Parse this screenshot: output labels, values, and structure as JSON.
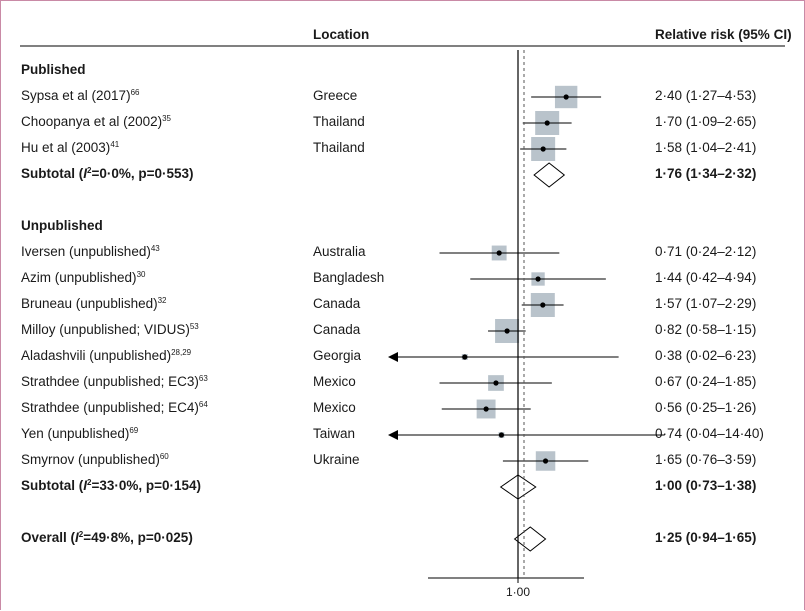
{
  "header": {
    "location": "Location",
    "effect": "Relative risk (95% CI)"
  },
  "sections": [
    {
      "label": "Published",
      "studies": [
        {
          "name": "Sypsa et al (2017)",
          "ref": "66",
          "location": "Greece",
          "rr": 2.4,
          "lo": 1.27,
          "hi": 4.53,
          "label": "2·40 (1·27–4·53)"
        },
        {
          "name": "Choopanya et al (2002)",
          "ref": "35",
          "location": "Thailand",
          "rr": 1.7,
          "lo": 1.09,
          "hi": 2.65,
          "label": "1·70 (1·09–2·65)"
        },
        {
          "name": "Hu et al (2003)",
          "ref": "41",
          "location": "Thailand",
          "rr": 1.58,
          "lo": 1.04,
          "hi": 2.41,
          "label": "1·58 (1·04–2·41)"
        }
      ],
      "subtotal": {
        "pre": "Subtotal (",
        "i": "I",
        "sq": "2",
        "post": "=0·0%, p=0·553)",
        "rr": 1.76,
        "lo": 1.34,
        "hi": 2.32,
        "label": "1·76 (1·34–2·32)"
      }
    },
    {
      "label": "Unpublished",
      "studies": [
        {
          "name": "Iversen (unpublished)",
          "ref": "43",
          "location": "Australia",
          "rr": 0.71,
          "lo": 0.24,
          "hi": 2.12,
          "label": "0·71 (0·24–2·12)"
        },
        {
          "name": "Azim (unpublished)",
          "ref": "30",
          "location": "Bangladesh",
          "rr": 1.44,
          "lo": 0.42,
          "hi": 4.94,
          "label": "1·44 (0·42–4·94)"
        },
        {
          "name": "Bruneau (unpublished)",
          "ref": "32",
          "location": "Canada",
          "rr": 1.57,
          "lo": 1.07,
          "hi": 2.29,
          "label": "1·57 (1·07–2·29)"
        },
        {
          "name": "Milloy (unpublished; VIDUS)",
          "ref": "53",
          "location": "Canada",
          "rr": 0.82,
          "lo": 0.58,
          "hi": 1.15,
          "label": "0·82 (0·58–1·15)"
        },
        {
          "name": "Aladashvili (unpublished)",
          "ref": "28,29",
          "location": "Georgia",
          "rr": 0.38,
          "lo": 0.02,
          "hi": 6.23,
          "label": "0·38 (0·02–6·23)"
        },
        {
          "name": "Strathdee (unpublished; EC3)",
          "ref": "63",
          "location": "Mexico",
          "rr": 0.67,
          "lo": 0.24,
          "hi": 1.85,
          "label": "0·67 (0·24–1·85)"
        },
        {
          "name": "Strathdee (unpublished; EC4)",
          "ref": "64",
          "location": "Mexico",
          "rr": 0.56,
          "lo": 0.25,
          "hi": 1.26,
          "label": "0·56 (0·25–1·26)"
        },
        {
          "name": "Yen (unpublished)",
          "ref": "69",
          "location": "Taiwan",
          "rr": 0.74,
          "lo": 0.04,
          "hi": 14.4,
          "label": "0·74 (0·04–14·40)"
        },
        {
          "name": "Smyrnov (unpublished)",
          "ref": "60",
          "location": "Ukraine",
          "rr": 1.65,
          "lo": 0.76,
          "hi": 3.59,
          "label": "1·65 (0·76–3·59)"
        }
      ],
      "subtotal": {
        "pre": "Subtotal (",
        "i": "I",
        "sq": "2",
        "post": "=33·0%, p=0·154)",
        "rr": 1.0,
        "lo": 0.73,
        "hi": 1.38,
        "label": "1·00 (0·73–1·38)"
      }
    }
  ],
  "overall": {
    "pre": "Overall (",
    "i": "I",
    "sq": "2",
    "post": "=49·8%, p=0·025)",
    "rr": 1.25,
    "lo": 0.94,
    "hi": 1.65,
    "label": "1·25 (0·94–1·65)"
  },
  "chart_data": {
    "type": "forest",
    "scale": "log",
    "null_line": 1.0,
    "x_tick_labels": [
      "1·00"
    ],
    "x_ticks": [
      1.0
    ],
    "colors": {
      "box": "#b9c3cb",
      "line": "#000000",
      "dashed": "#555555"
    }
  }
}
